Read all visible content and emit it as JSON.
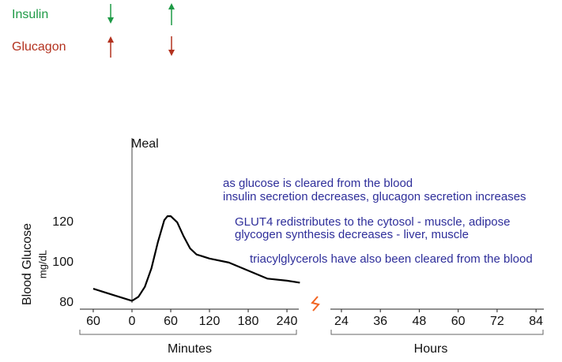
{
  "chart_data": {
    "type": "line",
    "hormones": [
      {
        "name": "Insulin",
        "color": "#1e9a46"
      },
      {
        "name": "Glucagon",
        "color": "#b3321f"
      }
    ],
    "annotation": {
      "text": "Meal",
      "x": 0
    },
    "notes": [
      "as glucose is cleared from the blood",
      "insulin secretion decreases, glucagon secretion increases",
      "GLUT4 redistributes to the cytosol - muscle, adipose",
      "glycogen synthesis decreases - liver, muscle",
      "triacylglycerols have also been cleared from the blood"
    ],
    "notes_color": "#2e2e9a",
    "ylabel": "Blood Glucose",
    "yunit": "mg/dL",
    "xlabel": "Minutes",
    "x": [
      -60,
      -30,
      0,
      10,
      20,
      30,
      40,
      50,
      55,
      60,
      70,
      80,
      90,
      100,
      120,
      150,
      180,
      210,
      240,
      260
    ],
    "series": [
      {
        "color": "#000000",
        "values": [
          87,
          84,
          81,
          83,
          88,
          97,
          110,
          121,
          123,
          123,
          120,
          113,
          107,
          104,
          102,
          100,
          96,
          92,
          91,
          90
        ]
      }
    ],
    "xlim": [
      -82,
      262
    ],
    "xticks": [
      {
        "value": -60,
        "label": "60"
      },
      0,
      60,
      120,
      180,
      240
    ],
    "ylim": [
      80,
      125
    ],
    "yticks": [
      80,
      100,
      120
    ],
    "x2label": "Hours",
    "x2lim": [
      20.6,
      86.4
    ],
    "x2ticks": [
      24,
      36,
      48,
      60,
      72,
      84
    ],
    "break_color": "#f26522",
    "grid": false
  }
}
